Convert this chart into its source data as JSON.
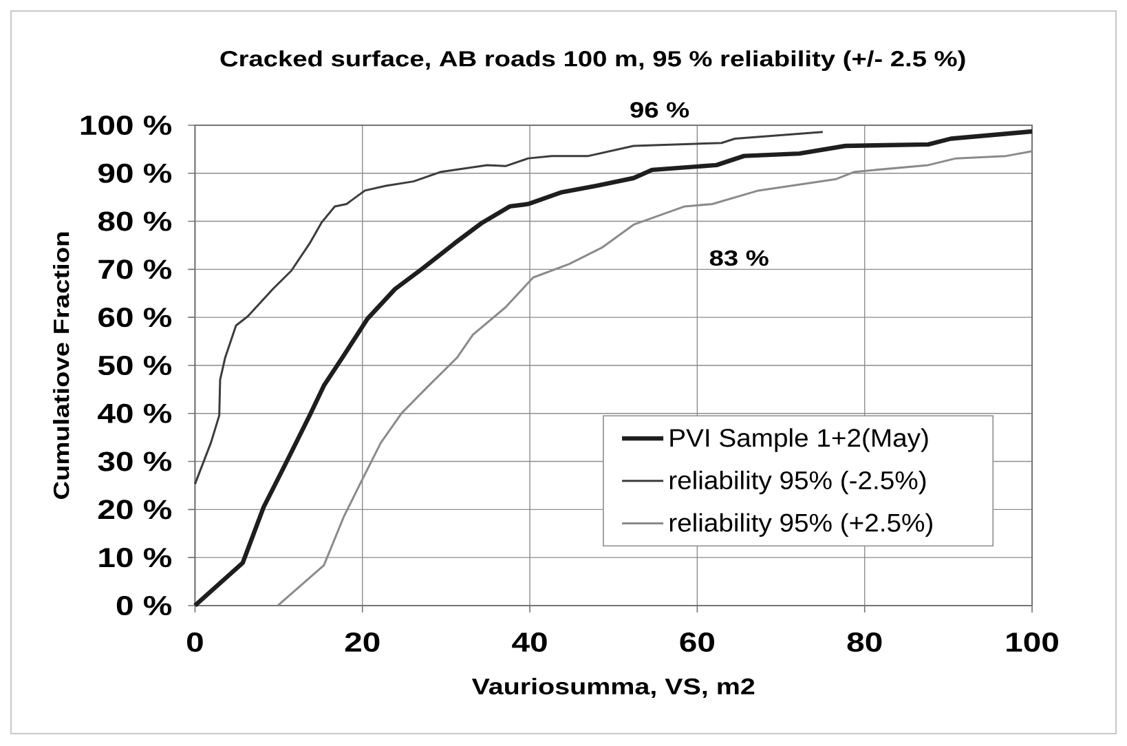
{
  "chart_data": {
    "type": "line",
    "title": "Cracked surface, AB roads 100 m, 95 % reliability (+/- 2.5 %)",
    "xlabel": "Vauriosumma, VS, m2",
    "ylabel": "Cumulatiove Fraction",
    "annotations": [
      "96 %",
      "83 %"
    ],
    "series": [
      {
        "name": "PVI Sample 1+2(May)",
        "color": "#1e1e1e",
        "x": [
          0,
          5.7,
          8.2,
          10.7,
          13.7,
          15.4,
          17.6,
          20.6,
          23.9,
          27.2,
          31.0,
          34.3,
          37.6,
          39.8,
          43.7,
          48.0,
          52.4,
          54.6,
          62.3,
          65.6,
          72.2,
          77.7,
          87.6,
          90.3,
          100
        ],
        "values": [
          0,
          8.9,
          20.5,
          29.1,
          39.6,
          45.8,
          51.6,
          59.7,
          65.9,
          70.2,
          75.4,
          79.7,
          83.1,
          83.6,
          86.0,
          87.4,
          89.0,
          90.7,
          91.7,
          93.6,
          94.1,
          95.7,
          96.0,
          97.2,
          98.7
        ]
      },
      {
        "name": "reliability 95% (-2.5%)",
        "color": "#3c3c3c",
        "x": [
          0,
          1.9,
          2.9,
          3.0,
          3.6,
          4.9,
          6.3,
          9.3,
          11.5,
          13.7,
          15.1,
          16.7,
          18.1,
          20.3,
          22.8,
          26.1,
          29.4,
          34.9,
          37.1,
          39.8,
          42.6,
          47.0,
          52.4,
          62.9,
          64.5,
          75.0
        ],
        "values": [
          25.3,
          33.9,
          39.6,
          47.0,
          51.6,
          58.3,
          60.2,
          65.9,
          69.7,
          75.4,
          79.7,
          83.1,
          83.6,
          86.4,
          87.4,
          88.3,
          90.3,
          91.7,
          91.5,
          93.1,
          93.6,
          93.6,
          95.7,
          96.3,
          97.2,
          98.6
        ]
      },
      {
        "name": "reliability 95% (+2.5%)",
        "color": "#8a8a8a",
        "x": [
          9.9,
          15.4,
          17.8,
          20.0,
          22.2,
          24.7,
          27.7,
          31.3,
          33.2,
          37.1,
          40.4,
          44.7,
          48.6,
          52.4,
          58.5,
          61.8,
          67.3,
          76.6,
          78.8,
          87.6,
          90.9,
          96.9,
          100
        ],
        "values": [
          0,
          8.4,
          18.6,
          26.3,
          33.9,
          40.1,
          45.4,
          51.6,
          56.4,
          62.1,
          68.3,
          71.1,
          74.5,
          79.3,
          83.1,
          83.6,
          86.4,
          88.8,
          90.3,
          91.7,
          93.1,
          93.6,
          94.6
        ]
      }
    ],
    "xlim": [
      0,
      100
    ],
    "xticks": [
      0,
      20,
      40,
      60,
      80,
      100
    ],
    "ylim": [
      0,
      100
    ],
    "yticks": [
      {
        "value": 0,
        "label": "0 %"
      },
      {
        "value": 10,
        "label": "10 %"
      },
      {
        "value": 20,
        "label": "20 %"
      },
      {
        "value": 30,
        "label": "30 %"
      },
      {
        "value": 40,
        "label": "40 %"
      },
      {
        "value": 50,
        "label": "50 %"
      },
      {
        "value": 60,
        "label": "60 %"
      },
      {
        "value": 70,
        "label": "70 %"
      },
      {
        "value": 80,
        "label": "80 %"
      },
      {
        "value": 90,
        "label": "90 %"
      },
      {
        "value": 100,
        "label": "100 %"
      }
    ],
    "grid": true,
    "legend": "bottom right"
  }
}
